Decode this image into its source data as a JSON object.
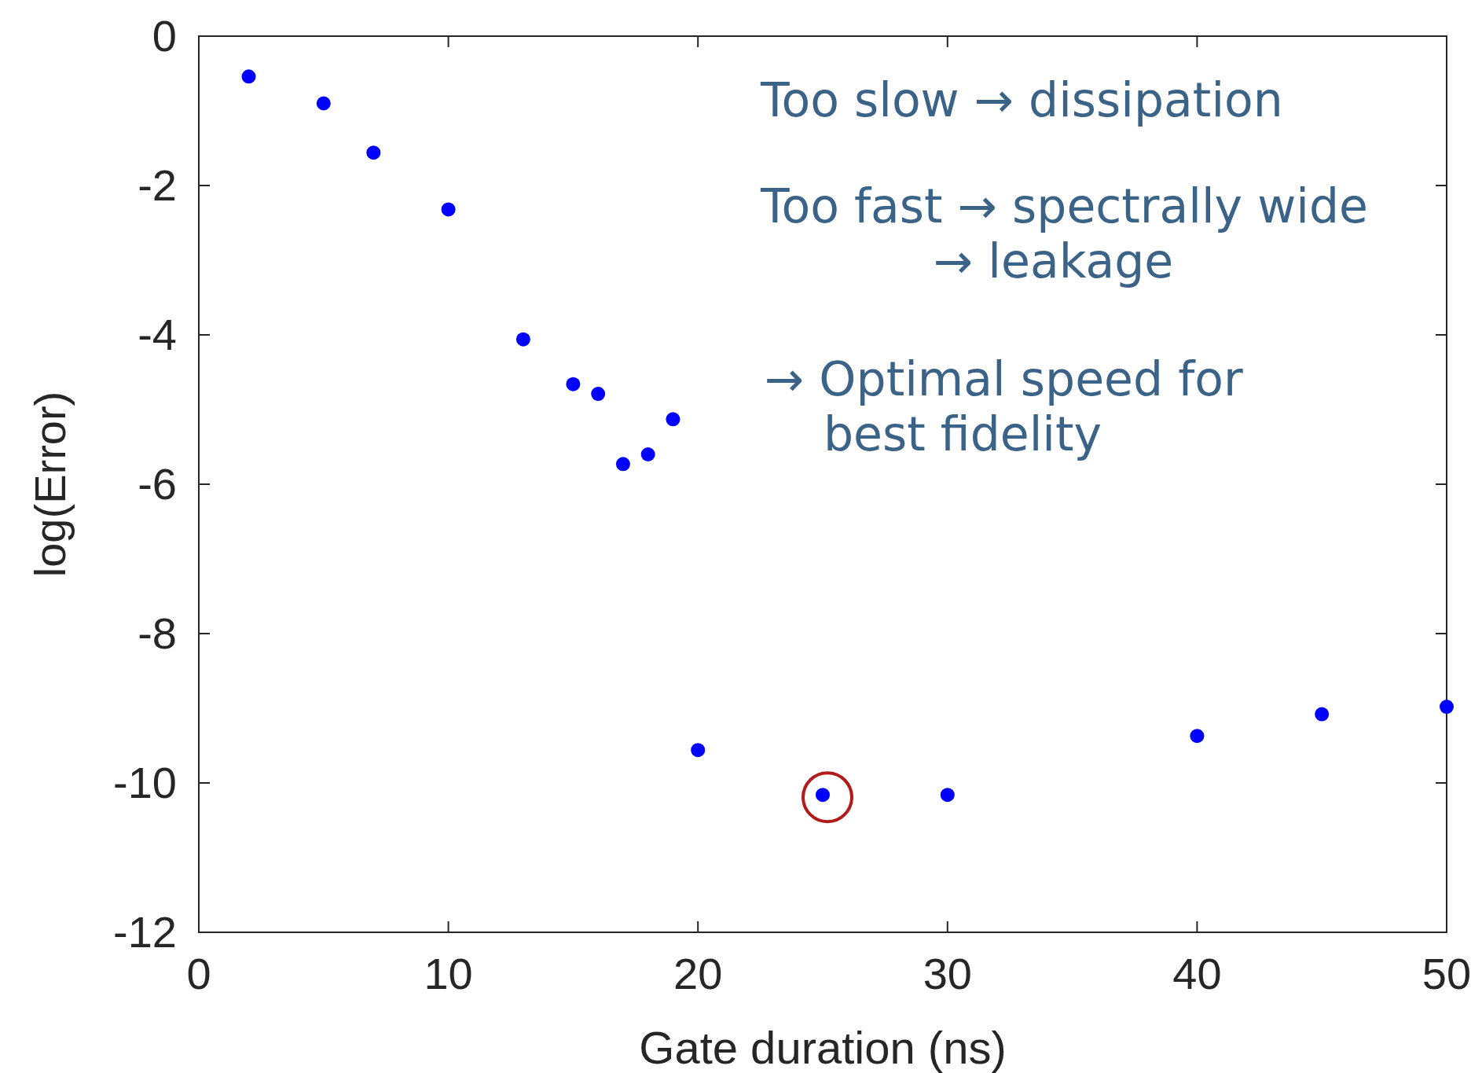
{
  "chart_data": {
    "type": "scatter",
    "xlabel": "Gate duration (ns)",
    "ylabel": "log(Error)",
    "x": [
      2,
      5,
      7,
      10,
      13,
      15,
      16,
      17,
      18,
      19,
      20,
      25,
      30,
      40,
      45,
      50
    ],
    "values": [
      -0.54,
      -0.9,
      -1.56,
      -2.32,
      -4.06,
      -4.66,
      -4.79,
      -5.73,
      -5.6,
      -5.13,
      -9.56,
      -10.16,
      -10.16,
      -9.37,
      -9.08,
      -8.98
    ],
    "color": "#0000ff",
    "marker": "circle",
    "xlim": [
      0,
      50
    ],
    "xticks": [
      0,
      10,
      20,
      30,
      40,
      50
    ],
    "ylim": [
      -12,
      0
    ],
    "yticks": [
      -12,
      -10,
      -8,
      -6,
      -4,
      -2,
      0
    ],
    "grid": false,
    "annotations": [
      "Too slow → dissipation",
      "Too fast → spectrally wide\n→ leakage",
      "→ Optimal speed for\nbest fidelity"
    ]
  }
}
